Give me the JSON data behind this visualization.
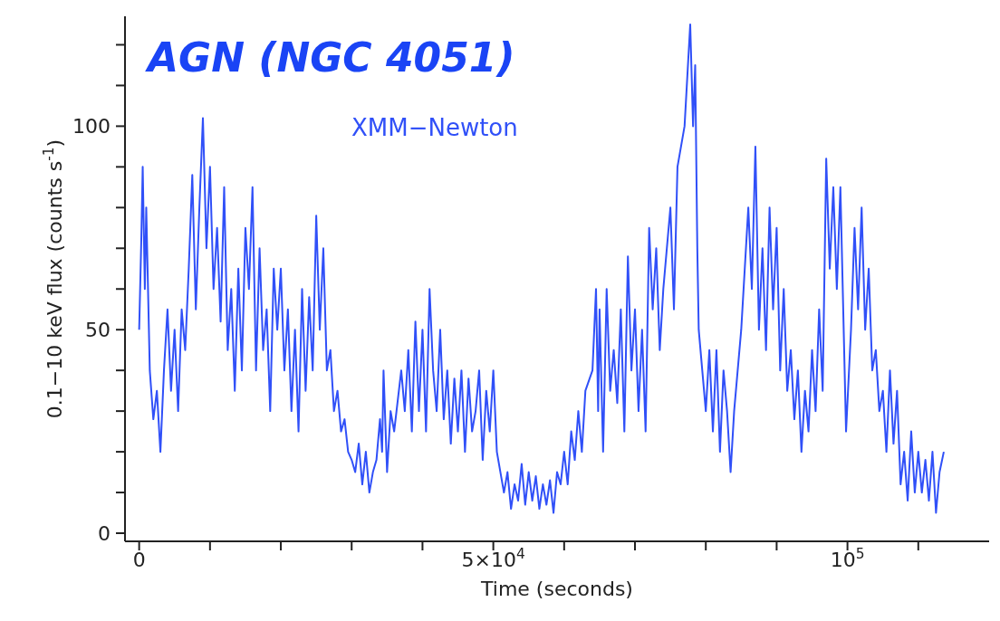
{
  "chart_data": {
    "type": "line",
    "title": "AGN (NGC 4051)",
    "xlabel": "Time (seconds)",
    "ylabel": "0.1−10 keV flux (counts s$^{-1}$)",
    "annotations": [
      "XMM−Newton"
    ],
    "x": [
      0,
      300,
      500,
      800,
      1000,
      1500,
      2000,
      2500,
      3000,
      3500,
      4000,
      4500,
      5000,
      5500,
      6000,
      6500,
      7000,
      7500,
      8000,
      8500,
      9000,
      9500,
      10000,
      10500,
      11000,
      11500,
      12000,
      12500,
      13000,
      13500,
      14000,
      14500,
      15000,
      15500,
      16000,
      16500,
      17000,
      17500,
      18000,
      18500,
      19000,
      19500,
      20000,
      20500,
      21000,
      21500,
      22000,
      22500,
      23000,
      23500,
      24000,
      24500,
      25000,
      25500,
      26000,
      26500,
      27000,
      27500,
      28000,
      28500,
      29000,
      29500,
      30000,
      30500,
      31000,
      31500,
      32000,
      32500,
      33000,
      33500,
      34000,
      34300,
      34500,
      35000,
      35500,
      36000,
      37000,
      37500,
      38000,
      38500,
      39000,
      39500,
      40000,
      40500,
      41000,
      41500,
      42000,
      42500,
      43000,
      43500,
      44000,
      44500,
      45000,
      45500,
      46000,
      46500,
      47000,
      47500,
      48000,
      48500,
      49000,
      49500,
      50000,
      50500,
      51000,
      51500,
      52000,
      52500,
      53000,
      53500,
      54000,
      54500,
      55000,
      55500,
      56000,
      56500,
      57000,
      57500,
      58000,
      58500,
      59000,
      59500,
      60000,
      60500,
      61000,
      61500,
      62000,
      62500,
      63000,
      64000,
      64500,
      64800,
      65000,
      65500,
      66000,
      66500,
      67000,
      67500,
      68000,
      68500,
      69000,
      69500,
      70000,
      70500,
      71000,
      71500,
      72000,
      72500,
      73000,
      73500,
      74000,
      75000,
      75500,
      76000,
      77000,
      77800,
      78200,
      78500,
      78800,
      79000,
      79500,
      80000,
      80500,
      81000,
      81500,
      82000,
      82500,
      83000,
      83500,
      84000,
      85000,
      86000,
      86500,
      87000,
      87500,
      88000,
      88500,
      89000,
      89500,
      90000,
      90500,
      91000,
      91500,
      92000,
      92500,
      93000,
      93500,
      94000,
      94500,
      95000,
      95500,
      96000,
      96500,
      97000,
      97500,
      98000,
      98500,
      99000,
      99800,
      100500,
      101000,
      101500,
      102000,
      102500,
      103000,
      103500,
      104000,
      104500,
      105000,
      105500,
      106000,
      106500,
      107000,
      107500,
      108000,
      108500,
      109000,
      109500,
      110000,
      110500,
      111000,
      111500,
      112000,
      112500,
      113000,
      113600
    ],
    "series": [
      {
        "color": "#3050f8",
        "values": [
          50,
          72,
          90,
          60,
          80,
          40,
          28,
          35,
          20,
          40,
          55,
          35,
          50,
          30,
          55,
          45,
          65,
          88,
          55,
          80,
          102,
          70,
          90,
          60,
          75,
          52,
          85,
          45,
          60,
          35,
          65,
          40,
          75,
          60,
          85,
          40,
          70,
          45,
          55,
          30,
          65,
          50,
          65,
          40,
          55,
          30,
          50,
          25,
          60,
          35,
          58,
          40,
          78,
          50,
          70,
          40,
          45,
          30,
          35,
          25,
          28,
          20,
          18,
          15,
          22,
          12,
          20,
          10,
          15,
          18,
          28,
          20,
          40,
          15,
          30,
          25,
          40,
          30,
          45,
          25,
          52,
          30,
          50,
          25,
          60,
          40,
          30,
          50,
          28,
          40,
          22,
          38,
          25,
          40,
          20,
          38,
          25,
          30,
          40,
          18,
          35,
          25,
          40,
          20,
          15,
          10,
          15,
          6,
          12,
          8,
          17,
          7,
          15,
          8,
          14,
          6,
          12,
          7,
          13,
          5,
          15,
          12,
          20,
          12,
          25,
          18,
          30,
          20,
          35,
          40,
          60,
          30,
          55,
          20,
          60,
          35,
          45,
          32,
          55,
          25,
          68,
          40,
          55,
          30,
          50,
          25,
          75,
          55,
          70,
          45,
          60,
          80,
          55,
          90,
          100,
          125,
          100,
          115,
          70,
          50,
          40,
          30,
          45,
          25,
          45,
          20,
          40,
          30,
          15,
          30,
          50,
          80,
          60,
          95,
          50,
          70,
          45,
          80,
          55,
          75,
          40,
          60,
          35,
          45,
          28,
          40,
          20,
          35,
          25,
          45,
          30,
          55,
          35,
          92,
          65,
          85,
          60,
          85,
          25,
          50,
          75,
          55,
          80,
          50,
          65,
          40,
          45,
          30,
          35,
          20,
          40,
          22,
          35,
          12,
          20,
          8,
          25,
          10,
          20,
          10,
          18,
          8,
          20,
          5,
          15,
          20
        ]
      }
    ],
    "xlim": [
      -2000,
      120000
    ],
    "xticks": [
      0,
      {
        "value": 10000,
        "label": null
      },
      {
        "value": 20000,
        "label": null
      },
      {
        "value": 30000,
        "label": null
      },
      {
        "value": 40000,
        "label": null
      },
      {
        "value": 50000,
        "label": "5×10$^{4}$"
      },
      {
        "value": 60000,
        "label": null
      },
      {
        "value": 70000,
        "label": null
      },
      {
        "value": 80000,
        "label": null
      },
      {
        "value": 90000,
        "label": null
      },
      {
        "value": 100000,
        "label": "10$^{5}$"
      },
      {
        "value": 110000,
        "label": null
      }
    ],
    "ylim": [
      -2,
      127
    ],
    "yticks": [
      0,
      {
        "value": 10,
        "label": null
      },
      {
        "value": 20,
        "label": null
      },
      {
        "value": 30,
        "label": null
      },
      {
        "value": 40,
        "label": null
      },
      50,
      {
        "value": 60,
        "label": null
      },
      {
        "value": 70,
        "label": null
      },
      {
        "value": 80,
        "label": null
      },
      {
        "value": 90,
        "label": null
      },
      100,
      {
        "value": 110,
        "label": null
      },
      {
        "value": 120,
        "label": null
      }
    ],
    "grid": false,
    "legend": false,
    "marker": "none",
    "line_style": "solid"
  }
}
